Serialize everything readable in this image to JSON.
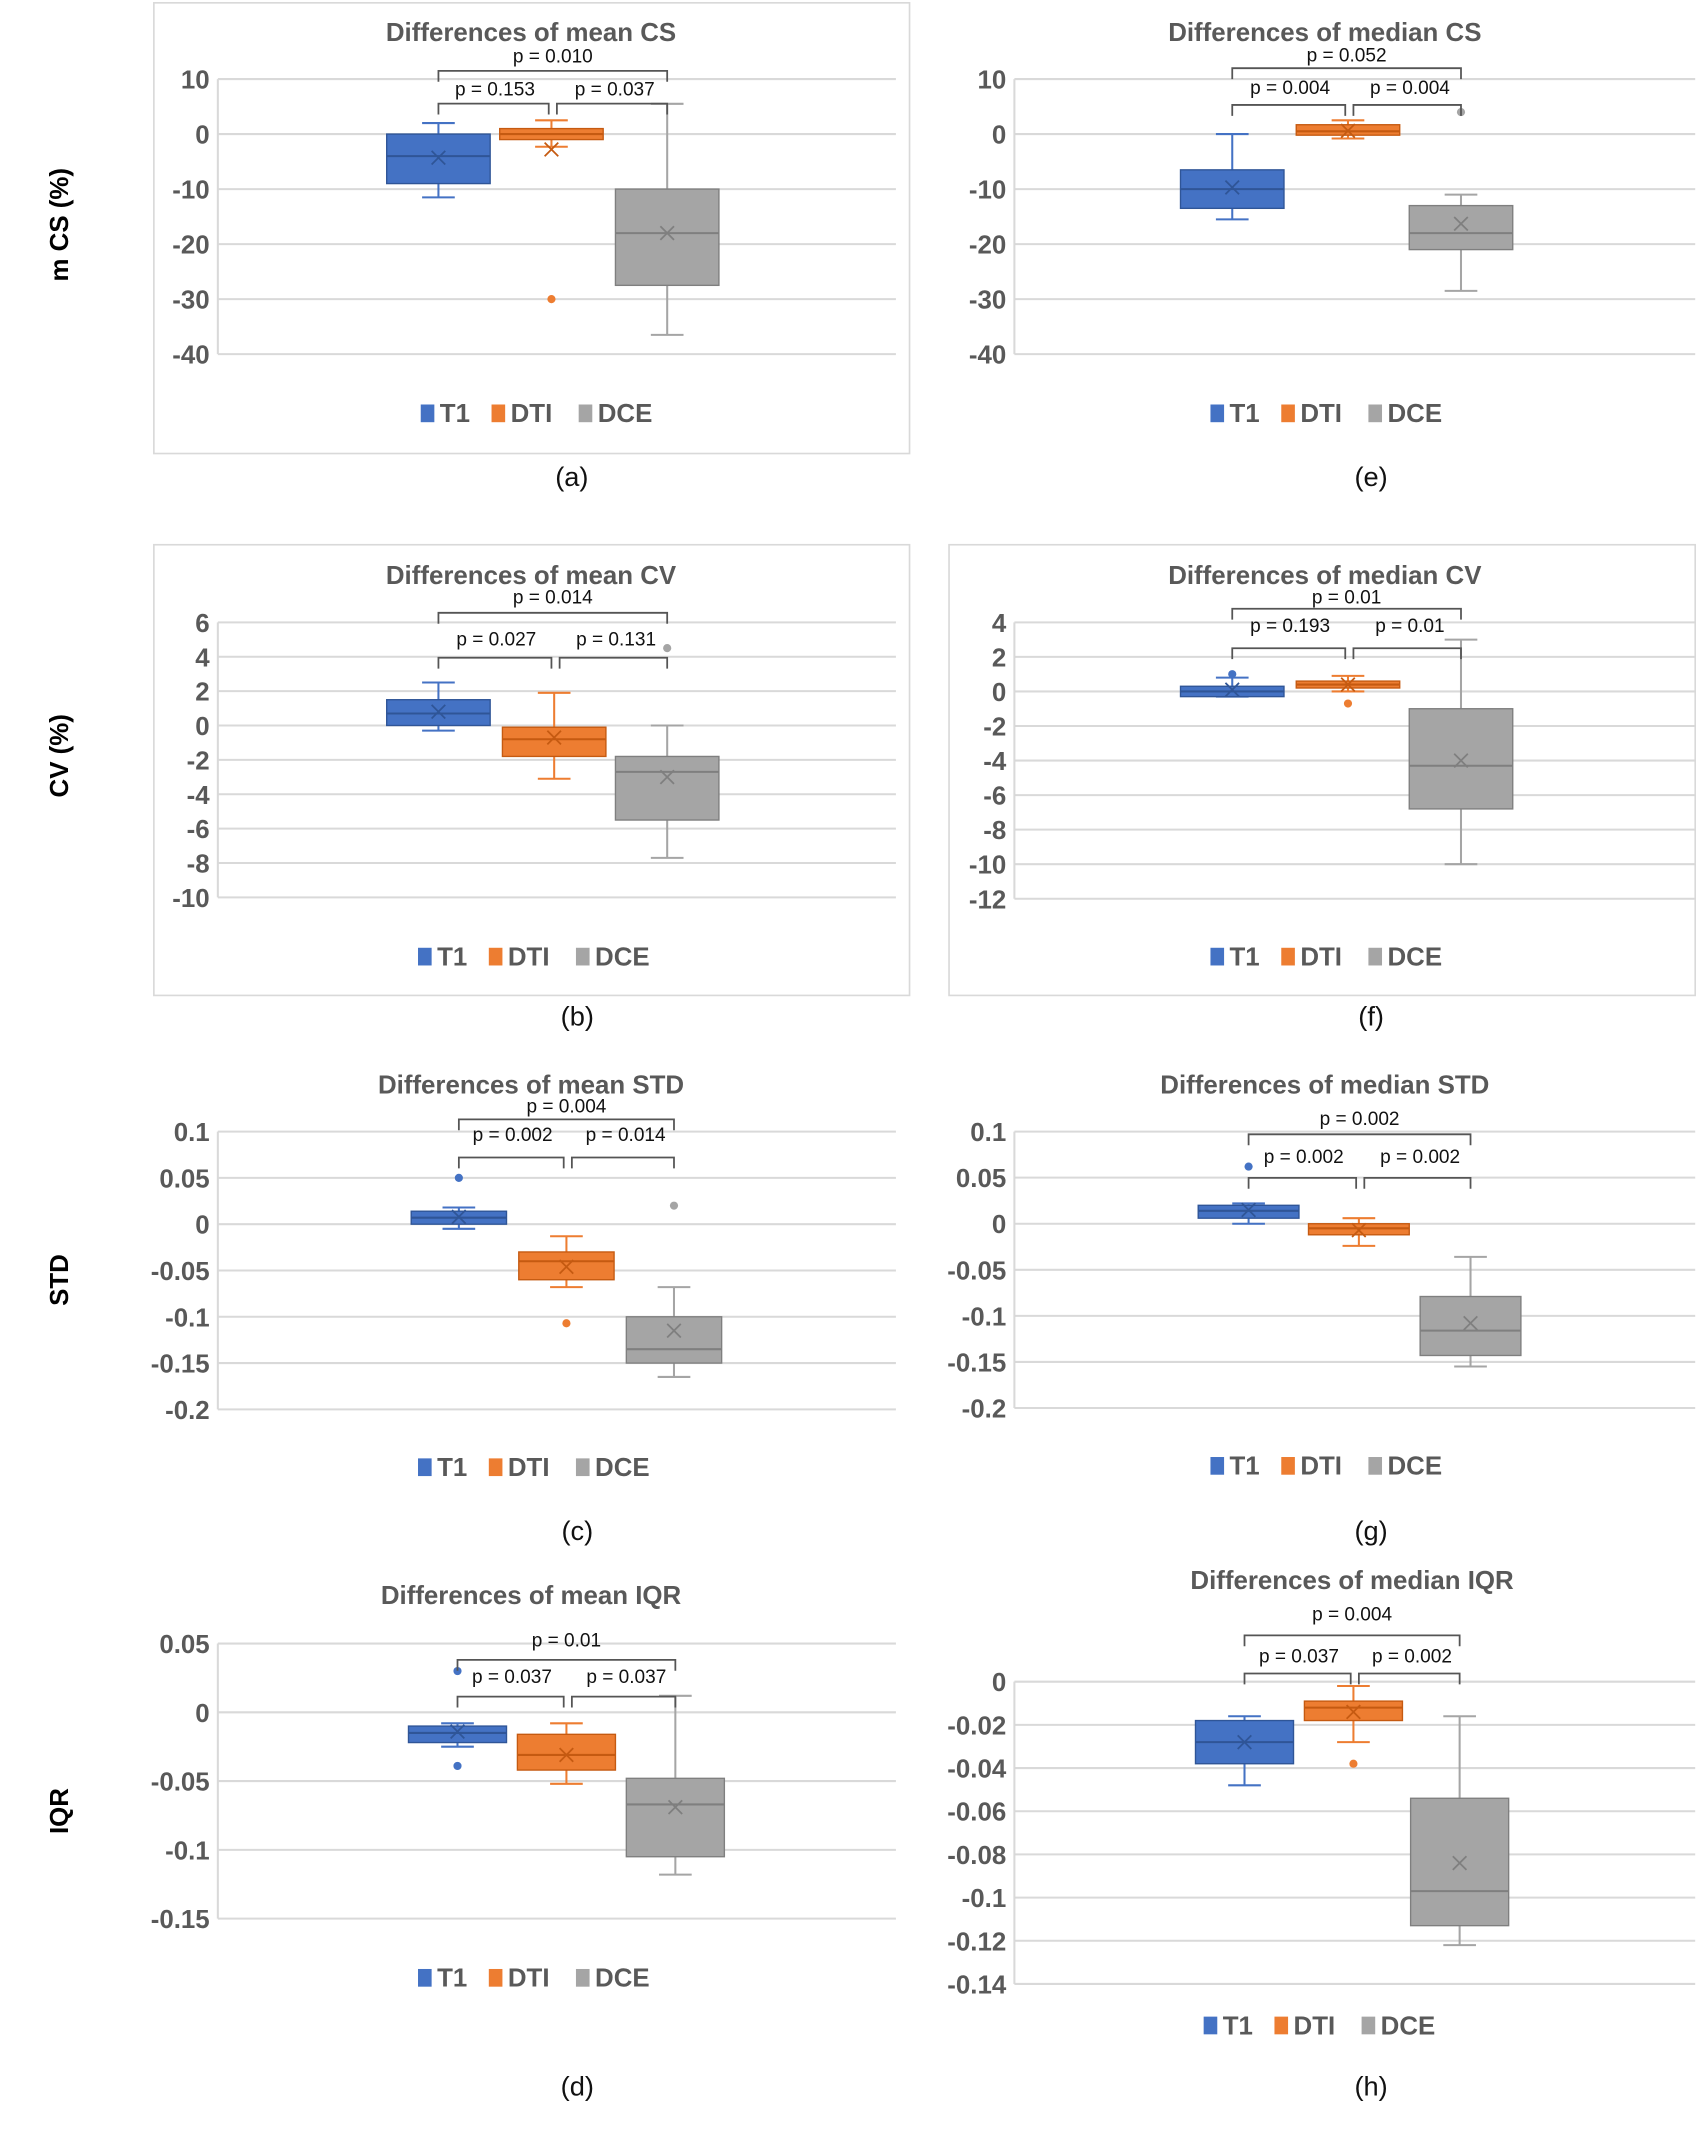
{
  "row_labels": [
    "m CS (%)",
    "CV (%)",
    "STD",
    "IQR"
  ],
  "legend": [
    "T1",
    "DTI",
    "DCE"
  ],
  "colors": {
    "T1": "#4472C4",
    "DTI": "#ED7D31",
    "DCE": "#A5A5A5"
  },
  "chart_data": [
    {
      "id": "a",
      "type": "box",
      "caption": "(a)",
      "title": "Differences of mean CS",
      "ylim": [
        -40,
        10
      ],
      "ticks": [
        10,
        0,
        -10,
        -20,
        -30,
        -40
      ],
      "series": [
        {
          "name": "T1",
          "min": -11.5,
          "q1": -9,
          "median": -4,
          "q3": 0,
          "max": 2,
          "mean": -4.3,
          "outliers": []
        },
        {
          "name": "DTI",
          "min": -2.3,
          "q1": -1,
          "median": 0,
          "q3": 1,
          "max": 2.5,
          "mean": -2.8,
          "outliers": [
            -30
          ]
        },
        {
          "name": "DCE",
          "min": -36.5,
          "q1": -27.5,
          "median": -18,
          "q3": -10,
          "max": 5.5,
          "mean": -18,
          "outliers": []
        }
      ],
      "p_values": {
        "T1_DTI": "p = 0.153",
        "DTI_DCE": "p = 0.037",
        "T1_DCE": "p = 0.010"
      }
    },
    {
      "id": "e",
      "type": "box",
      "caption": "(e)",
      "title": "Differences of median CS",
      "ylim": [
        -40,
        10
      ],
      "ticks": [
        10,
        0,
        -10,
        -20,
        -30,
        -40
      ],
      "series": [
        {
          "name": "T1",
          "min": -15.5,
          "q1": -13.5,
          "median": -10,
          "q3": -6.5,
          "max": 0,
          "mean": -9.7,
          "outliers": []
        },
        {
          "name": "DTI",
          "min": -0.8,
          "q1": -0.2,
          "median": 0.5,
          "q3": 1.7,
          "max": 2.5,
          "mean": 0.6,
          "outliers": []
        },
        {
          "name": "DCE",
          "min": -28.5,
          "q1": -21,
          "median": -18,
          "q3": -13,
          "max": -11,
          "mean": -16.3,
          "outliers": [
            4
          ]
        }
      ],
      "p_values": {
        "T1_DTI": "p = 0.004",
        "DTI_DCE": "p = 0.004",
        "T1_DCE": "p = 0.052"
      }
    },
    {
      "id": "b",
      "type": "box",
      "caption": "(b)",
      "title": "Differences of mean CV",
      "ylim": [
        -10,
        6
      ],
      "ticks": [
        6,
        4,
        2,
        0,
        -2,
        -4,
        -6,
        -8,
        -10
      ],
      "series": [
        {
          "name": "T1",
          "min": -0.3,
          "q1": 0,
          "median": 0.7,
          "q3": 1.5,
          "max": 2.5,
          "mean": 0.8,
          "outliers": []
        },
        {
          "name": "DTI",
          "min": -3.1,
          "q1": -1.8,
          "median": -0.8,
          "q3": -0.1,
          "max": 1.9,
          "mean": -0.7,
          "outliers": []
        },
        {
          "name": "DCE",
          "min": -7.7,
          "q1": -5.5,
          "median": -2.7,
          "q3": -1.8,
          "max": 0,
          "mean": -3,
          "outliers": [
            4.5
          ]
        }
      ],
      "p_values": {
        "T1_DTI": "p = 0.027",
        "DTI_DCE": "p = 0.131",
        "T1_DCE": "p = 0.014"
      }
    },
    {
      "id": "f",
      "type": "box",
      "caption": "(f)",
      "title": "Differences of median CV",
      "ylim": [
        -12,
        4
      ],
      "ticks": [
        4,
        2,
        0,
        -2,
        -4,
        -6,
        -8,
        -10,
        -12
      ],
      "series": [
        {
          "name": "T1",
          "min": -0.3,
          "q1": -0.3,
          "median": 0,
          "q3": 0.3,
          "max": 0.8,
          "mean": 0.1,
          "outliers": [
            1
          ]
        },
        {
          "name": "DTI",
          "min": 0,
          "q1": 0.2,
          "median": 0.4,
          "q3": 0.6,
          "max": 0.9,
          "mean": 0.4,
          "outliers": [
            -0.7
          ]
        },
        {
          "name": "DCE",
          "min": -10,
          "q1": -6.8,
          "median": -4.3,
          "q3": -1,
          "max": 3,
          "mean": -4,
          "outliers": []
        }
      ],
      "p_values": {
        "T1_DTI": "p = 0.193",
        "DTI_DCE": "p = 0.01",
        "T1_DCE": "p = 0.01"
      }
    },
    {
      "id": "c",
      "type": "box",
      "caption": "(c)",
      "title": "Differences of mean STD",
      "ylim": [
        -0.2,
        0.1
      ],
      "ticks": [
        0.1,
        0.05,
        0,
        -0.05,
        -0.1,
        -0.15,
        -0.2
      ],
      "series": [
        {
          "name": "T1",
          "min": -0.005,
          "q1": 0,
          "median": 0.007,
          "q3": 0.014,
          "max": 0.018,
          "mean": 0.008,
          "outliers": [
            0.05
          ]
        },
        {
          "name": "DTI",
          "min": -0.068,
          "q1": -0.06,
          "median": -0.04,
          "q3": -0.03,
          "max": -0.013,
          "mean": -0.046,
          "outliers": [
            -0.107
          ]
        },
        {
          "name": "DCE",
          "min": -0.165,
          "q1": -0.15,
          "median": -0.135,
          "q3": -0.1,
          "max": -0.068,
          "mean": -0.115,
          "outliers": [
            0.02
          ]
        }
      ],
      "p_values": {
        "T1_DTI": "p = 0.002",
        "DTI_DCE": "p = 0.014",
        "T1_DCE": "p = 0.004"
      }
    },
    {
      "id": "g",
      "type": "box",
      "caption": "(g)",
      "title": "Differences of median STD",
      "ylim": [
        -0.2,
        0.1
      ],
      "ticks": [
        0.1,
        0.05,
        0,
        -0.05,
        -0.1,
        -0.15,
        -0.2
      ],
      "series": [
        {
          "name": "T1",
          "min": 0,
          "q1": 0.006,
          "median": 0.014,
          "q3": 0.02,
          "max": 0.022,
          "mean": 0.015,
          "outliers": [
            0.062
          ]
        },
        {
          "name": "DTI",
          "min": -0.024,
          "q1": -0.012,
          "median": -0.005,
          "q3": 0,
          "max": 0.006,
          "mean": -0.007,
          "outliers": []
        },
        {
          "name": "DCE",
          "min": -0.155,
          "q1": -0.143,
          "median": -0.116,
          "q3": -0.079,
          "max": -0.036,
          "mean": -0.108,
          "outliers": []
        }
      ],
      "p_values": {
        "T1_DTI": "p = 0.002",
        "DTI_DCE": "p = 0.002",
        "T1_DCE": "p = 0.002"
      }
    },
    {
      "id": "d",
      "type": "box",
      "caption": "(d)",
      "title": "Differences of mean IQR",
      "ylim": [
        -0.15,
        0.05
      ],
      "ticks": [
        0.05,
        0,
        -0.05,
        -0.1,
        -0.15
      ],
      "series": [
        {
          "name": "T1",
          "min": -0.025,
          "q1": -0.022,
          "median": -0.015,
          "q3": -0.01,
          "max": -0.008,
          "mean": -0.014,
          "outliers": [
            -0.039,
            0.03
          ]
        },
        {
          "name": "DTI",
          "min": -0.052,
          "q1": -0.042,
          "median": -0.031,
          "q3": -0.016,
          "max": -0.008,
          "mean": -0.031,
          "outliers": []
        },
        {
          "name": "DCE",
          "min": -0.118,
          "q1": -0.105,
          "median": -0.067,
          "q3": -0.048,
          "max": 0.012,
          "mean": -0.069,
          "outliers": []
        }
      ],
      "p_values": {
        "T1_DTI": "p = 0.037",
        "DTI_DCE": "p = 0.037",
        "T1_DCE": "p = 0.01"
      }
    },
    {
      "id": "h",
      "type": "box",
      "caption": "(h)",
      "title": "Differences of median IQR",
      "ylim": [
        -0.14,
        0
      ],
      "ticks": [
        0,
        -0.02,
        -0.04,
        -0.06,
        -0.08,
        -0.1,
        -0.12,
        -0.14
      ],
      "series": [
        {
          "name": "T1",
          "min": -0.048,
          "q1": -0.038,
          "median": -0.028,
          "q3": -0.018,
          "max": -0.016,
          "mean": -0.028,
          "outliers": []
        },
        {
          "name": "DTI",
          "min": -0.028,
          "q1": -0.018,
          "median": -0.012,
          "q3": -0.009,
          "max": -0.002,
          "mean": -0.014,
          "outliers": [
            -0.038
          ]
        },
        {
          "name": "DCE",
          "min": -0.122,
          "q1": -0.113,
          "median": -0.097,
          "q3": -0.054,
          "max": -0.016,
          "mean": -0.084,
          "outliers": []
        }
      ],
      "p_values": {
        "T1_DTI": "p = 0.037",
        "DTI_DCE": "p = 0.002",
        "T1_DCE": "p = 0.004"
      }
    }
  ]
}
